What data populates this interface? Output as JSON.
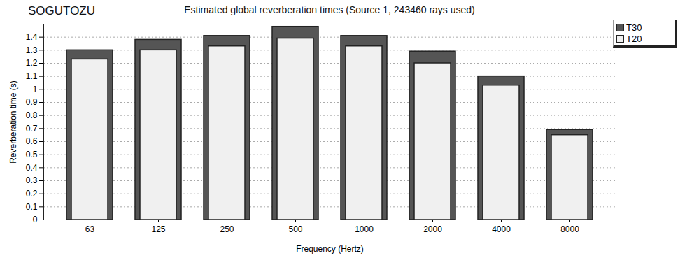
{
  "chart_data": {
    "type": "bar",
    "title": "Estimated global reverberation times (Source 1, 243460 rays used)",
    "subtitle": "SOGUTOZU",
    "x_label": "Frequency (Hertz)",
    "y_label": "Reverberation time (s)",
    "categories": [
      "63",
      "125",
      "250",
      "500",
      "1000",
      "2000",
      "4000",
      "8000"
    ],
    "series": [
      {
        "name": "T30",
        "color": "#555555",
        "values": [
          1.3,
          1.38,
          1.41,
          1.48,
          1.41,
          1.29,
          1.1,
          0.69
        ]
      },
      {
        "name": "T20",
        "color": "#f0f0f0",
        "values": [
          1.23,
          1.3,
          1.33,
          1.39,
          1.33,
          1.2,
          1.03,
          0.65
        ]
      }
    ],
    "ylim": [
      0,
      1.5
    ],
    "yticks": [
      0,
      0.1,
      0.2,
      0.3,
      0.4,
      0.5,
      0.6,
      0.7,
      0.8,
      0.9,
      1,
      1.1,
      1.2,
      1.3,
      1.4
    ],
    "grid": true,
    "legend": "right"
  }
}
